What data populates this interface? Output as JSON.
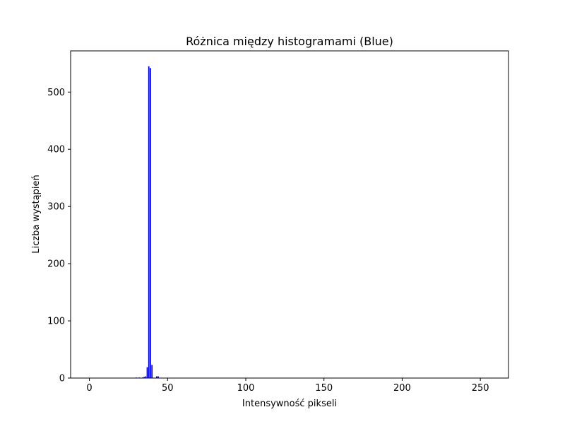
{
  "chart_data": {
    "type": "bar",
    "title": "Różnica między histogramami (Blue)",
    "xlabel": "Intensywność pikseli",
    "ylabel": "Liczba wystąpień",
    "xlim": [
      -12,
      268
    ],
    "ylim": [
      0,
      572
    ],
    "xticks": [
      0,
      50,
      100,
      150,
      200,
      250
    ],
    "yticks": [
      0,
      100,
      200,
      300,
      400,
      500
    ],
    "grid": false,
    "bar_color": "#0000ff",
    "x": [
      30,
      32,
      34,
      35,
      36,
      37,
      38,
      39,
      40,
      43,
      44
    ],
    "values": [
      1,
      1,
      1,
      2,
      3,
      19,
      545,
      542,
      23,
      3,
      3
    ]
  }
}
